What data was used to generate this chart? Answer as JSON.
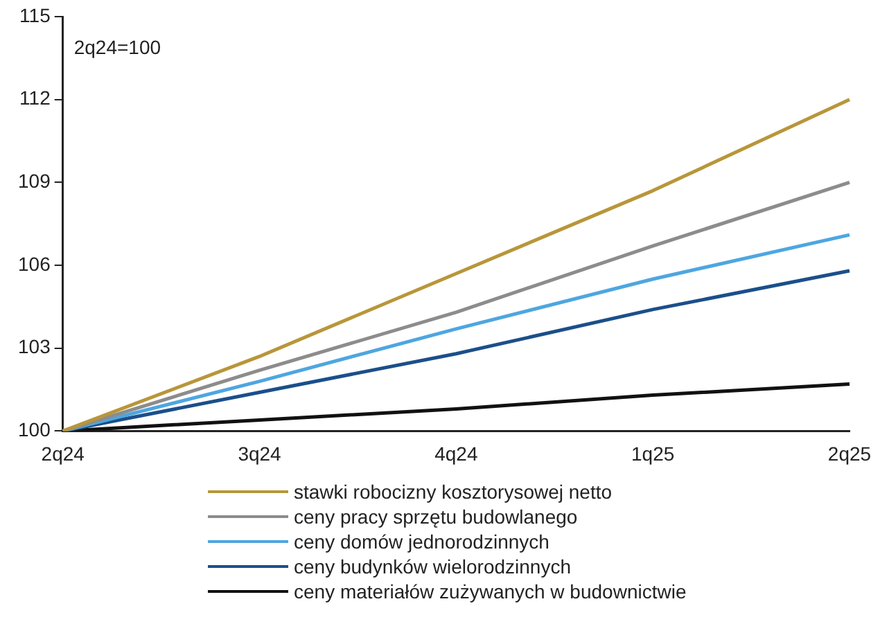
{
  "chart_data": {
    "type": "line",
    "categories": [
      "2q24",
      "3q24",
      "4q24",
      "1q25",
      "2q25"
    ],
    "series": [
      {
        "name": "stawki robocizny kosztorysowej netto",
        "color": "#b8963a",
        "values": [
          100,
          102.7,
          105.7,
          108.7,
          112.0
        ]
      },
      {
        "name": "ceny pracy sprzętu budowlanego",
        "color": "#8c8c8c",
        "values": [
          100,
          102.2,
          104.3,
          106.7,
          109.0
        ]
      },
      {
        "name": "ceny domów jednorodzinnych",
        "color": "#4ea6e0",
        "values": [
          100,
          101.8,
          103.7,
          105.5,
          107.1
        ]
      },
      {
        "name": "ceny budynków wielorodzinnych",
        "color": "#1b4f8a",
        "values": [
          100,
          101.4,
          102.8,
          104.4,
          105.8
        ]
      },
      {
        "name": "ceny materiałów zużywanych w budownictwie",
        "color": "#111111",
        "values": [
          100,
          100.4,
          100.8,
          101.3,
          101.7
        ]
      }
    ],
    "ylim": [
      100,
      115
    ],
    "yticks": [
      100,
      103,
      106,
      109,
      112,
      115
    ],
    "annotations": [
      "2q24=100"
    ],
    "grid": false,
    "legend": "bottom",
    "marker": "none",
    "line_style": "solid"
  }
}
